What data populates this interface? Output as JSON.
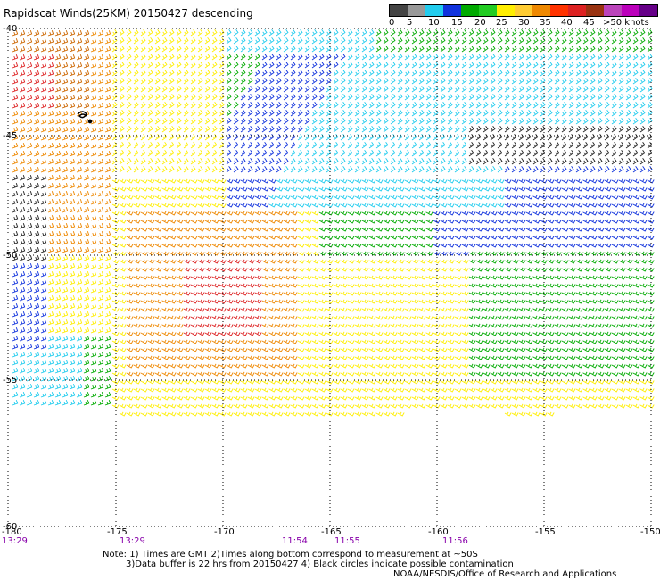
{
  "title": "Rapidscat Winds(25KM) 20150427 descending",
  "colorbar": {
    "labels": [
      "0",
      "5",
      "10",
      "15",
      "20",
      "25",
      "30",
      "35",
      "40",
      "45",
      ">50 knots"
    ],
    "colors": [
      "#444444",
      "#999999",
      "#22ccee",
      "#1133dd",
      "#00aa00",
      "#22cc22",
      "#ffee00",
      "#ffcc33",
      "#ee8800",
      "#ff3300",
      "#dd2222",
      "#993311",
      "#bb44bb",
      "#bb00bb",
      "#660088"
    ]
  },
  "axes": {
    "lat_labels": [
      "-40",
      "-45",
      "-50",
      "-55",
      "-60"
    ],
    "lon_labels": [
      "-180",
      "-175",
      "-170",
      "-165",
      "-160",
      "-155",
      "-150"
    ]
  },
  "times": [
    "13:29",
    "13:29",
    "11:54",
    "11:55",
    "11:56"
  ],
  "notes": [
    "Note: 1) Times are GMT 2)Times along bottom correspond to measurement at ~50S",
    "3)Data buffer is 22 hrs from 20150427 4) Black circles indicate possible contamination"
  ],
  "credit": "NOAA/NESDIS/Office of Research and Applications",
  "colors": {
    "black": "#222222",
    "cyan": "#22ccee",
    "blue": "#1133dd",
    "green": "#00aa00",
    "yellow": "#ffee00",
    "orange": "#ee8800",
    "red": "#dd2222",
    "darkorange": "#cc6600"
  }
}
